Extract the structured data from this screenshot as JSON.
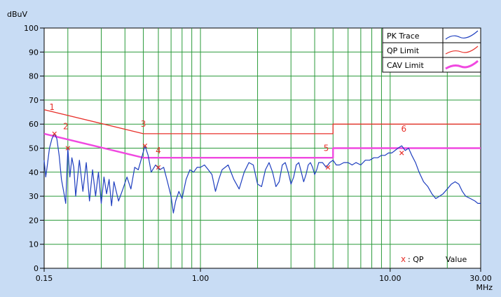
{
  "chart_data": {
    "type": "line",
    "ylabel": "dBuV",
    "xlabel": "MHz",
    "x_scale": "log",
    "xlim": [
      0.15,
      30
    ],
    "ylim": [
      0,
      100
    ],
    "y_ticks": [
      0,
      10,
      20,
      30,
      40,
      50,
      60,
      70,
      80,
      90,
      100
    ],
    "y_tick_labels": [
      "0",
      "10",
      "20",
      "30",
      "40",
      "50",
      "60",
      "70",
      "80",
      "90",
      "100"
    ],
    "x_tick_labels": [
      {
        "x": 0.15,
        "label": "0.15"
      },
      {
        "x": 1,
        "label": "1.00"
      },
      {
        "x": 10,
        "label": "10.00"
      },
      {
        "x": 30,
        "label": "30.00"
      }
    ],
    "vertical_grid_x": [
      0.15,
      0.2,
      0.3,
      0.4,
      0.5,
      0.6,
      0.7,
      0.8,
      0.9,
      1,
      2,
      3,
      4,
      5,
      6,
      7,
      8,
      9,
      10,
      20,
      30
    ],
    "horizontal_grid": true,
    "legend": {
      "position": "top-right",
      "entries": [
        {
          "name": "PK Trace",
          "color": "#1f3fbf"
        },
        {
          "name": "QP Limit",
          "color": "#e8302a"
        },
        {
          "name": "CAV Limit",
          "color": "#f048e0"
        }
      ]
    },
    "series": [
      {
        "name": "PK Trace",
        "color": "#1f3fbf",
        "points": [
          [
            0.15,
            45
          ],
          [
            0.153,
            38
          ],
          [
            0.156,
            43
          ],
          [
            0.16,
            50
          ],
          [
            0.165,
            54
          ],
          [
            0.17,
            56
          ],
          [
            0.175,
            54
          ],
          [
            0.18,
            47
          ],
          [
            0.185,
            37
          ],
          [
            0.19,
            32
          ],
          [
            0.195,
            27
          ],
          [
            0.2,
            50
          ],
          [
            0.205,
            38
          ],
          [
            0.21,
            46
          ],
          [
            0.215,
            42
          ],
          [
            0.22,
            30
          ],
          [
            0.23,
            45
          ],
          [
            0.24,
            32
          ],
          [
            0.25,
            44
          ],
          [
            0.26,
            28
          ],
          [
            0.27,
            41
          ],
          [
            0.28,
            30
          ],
          [
            0.29,
            40
          ],
          [
            0.3,
            27
          ],
          [
            0.31,
            38
          ],
          [
            0.32,
            31
          ],
          [
            0.33,
            37
          ],
          [
            0.34,
            26
          ],
          [
            0.35,
            36
          ],
          [
            0.37,
            28
          ],
          [
            0.39,
            33
          ],
          [
            0.41,
            38
          ],
          [
            0.43,
            33
          ],
          [
            0.45,
            42
          ],
          [
            0.47,
            41
          ],
          [
            0.49,
            46
          ],
          [
            0.51,
            51
          ],
          [
            0.53,
            47
          ],
          [
            0.55,
            40
          ],
          [
            0.58,
            43
          ],
          [
            0.61,
            41
          ],
          [
            0.64,
            42
          ],
          [
            0.67,
            36
          ],
          [
            0.7,
            30
          ],
          [
            0.72,
            23
          ],
          [
            0.74,
            28
          ],
          [
            0.77,
            32
          ],
          [
            0.8,
            29
          ],
          [
            0.84,
            37
          ],
          [
            0.88,
            41
          ],
          [
            0.92,
            40
          ],
          [
            0.96,
            42
          ],
          [
            1.0,
            42
          ],
          [
            1.05,
            43
          ],
          [
            1.1,
            41
          ],
          [
            1.15,
            39
          ],
          [
            1.2,
            32
          ],
          [
            1.25,
            37
          ],
          [
            1.3,
            41
          ],
          [
            1.4,
            43
          ],
          [
            1.5,
            37
          ],
          [
            1.6,
            33
          ],
          [
            1.7,
            40
          ],
          [
            1.8,
            44
          ],
          [
            1.9,
            43
          ],
          [
            2.0,
            35
          ],
          [
            2.1,
            34
          ],
          [
            2.2,
            41
          ],
          [
            2.3,
            44
          ],
          [
            2.4,
            40
          ],
          [
            2.5,
            34
          ],
          [
            2.6,
            36
          ],
          [
            2.7,
            43
          ],
          [
            2.8,
            44
          ],
          [
            2.9,
            40
          ],
          [
            3.0,
            35
          ],
          [
            3.1,
            38
          ],
          [
            3.2,
            43
          ],
          [
            3.3,
            44
          ],
          [
            3.4,
            40
          ],
          [
            3.5,
            36
          ],
          [
            3.6,
            39
          ],
          [
            3.7,
            43
          ],
          [
            3.8,
            44
          ],
          [
            3.9,
            42
          ],
          [
            4.0,
            39
          ],
          [
            4.1,
            41
          ],
          [
            4.2,
            44
          ],
          [
            4.4,
            44
          ],
          [
            4.6,
            42
          ],
          [
            4.8,
            44
          ],
          [
            5.0,
            45
          ],
          [
            5.2,
            43
          ],
          [
            5.4,
            43
          ],
          [
            5.7,
            44
          ],
          [
            6.0,
            44
          ],
          [
            6.3,
            43
          ],
          [
            6.6,
            44
          ],
          [
            7.0,
            43
          ],
          [
            7.4,
            45
          ],
          [
            7.8,
            45
          ],
          [
            8.2,
            46
          ],
          [
            8.6,
            46
          ],
          [
            9.0,
            47
          ],
          [
            9.4,
            47
          ],
          [
            9.8,
            48
          ],
          [
            10.2,
            48
          ],
          [
            10.6,
            49
          ],
          [
            11.0,
            50
          ],
          [
            11.5,
            51
          ],
          [
            12.0,
            49
          ],
          [
            12.5,
            50
          ],
          [
            13.0,
            47
          ],
          [
            13.6,
            44
          ],
          [
            14.2,
            40
          ],
          [
            15.0,
            36
          ],
          [
            15.8,
            34
          ],
          [
            16.6,
            31
          ],
          [
            17.4,
            29
          ],
          [
            18.2,
            30
          ],
          [
            19.0,
            31
          ],
          [
            20.0,
            33
          ],
          [
            21.0,
            35
          ],
          [
            22.0,
            36
          ],
          [
            23.0,
            35
          ],
          [
            24.0,
            32
          ],
          [
            25.0,
            30
          ],
          [
            26.5,
            29
          ],
          [
            28.0,
            28
          ],
          [
            29.0,
            27
          ],
          [
            30.0,
            27
          ]
        ]
      },
      {
        "name": "QP Limit",
        "color": "#e8302a",
        "points": [
          [
            0.15,
            66
          ],
          [
            0.5,
            56
          ],
          [
            5,
            56
          ],
          [
            5,
            60
          ],
          [
            30,
            60
          ]
        ]
      },
      {
        "name": "CAV Limit",
        "color": "#f048e0",
        "points": [
          [
            0.15,
            56
          ],
          [
            0.5,
            46
          ],
          [
            5,
            46
          ],
          [
            5,
            50
          ],
          [
            30,
            50
          ]
        ]
      }
    ],
    "markers": [
      {
        "label": "1",
        "x": 0.17,
        "y": 56,
        "label_x": 0.165,
        "label_y": 67
      },
      {
        "label": "2",
        "x": 0.2,
        "y": 50,
        "label_x": 0.195,
        "label_y": 59
      },
      {
        "label": "3",
        "x": 0.51,
        "y": 51,
        "label_x": 0.5,
        "label_y": 60
      },
      {
        "label": "4",
        "x": 0.6,
        "y": 42,
        "label_x": 0.6,
        "label_y": 49
      },
      {
        "label": "5",
        "x": 4.7,
        "y": 42,
        "label_x": 4.6,
        "label_y": 50
      },
      {
        "label": "6",
        "x": 11.5,
        "y": 48,
        "label_x": 11.8,
        "label_y": 58
      }
    ],
    "annotation": {
      "symbol": "x",
      "text": ": QP",
      "value_text": "Value"
    }
  }
}
